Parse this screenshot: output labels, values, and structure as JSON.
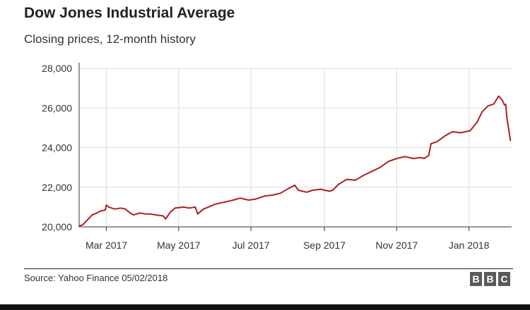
{
  "title": "Dow Jones Industrial Average",
  "subtitle": "Closing prices, 12-month history",
  "source": "Source: Yahoo Finance 05/02/2018",
  "logo": {
    "letters": [
      "B",
      "B",
      "C"
    ]
  },
  "colors": {
    "line": "#b01e1e",
    "grid": "#dddddd",
    "axis": "#333333",
    "text": "#222222"
  },
  "chart_data": {
    "type": "line",
    "title": "Dow Jones Industrial Average",
    "subtitle": "Closing prices, 12-month history",
    "xlabel": "",
    "ylabel": "",
    "ylim": [
      20000,
      28000
    ],
    "xlim": [
      "2017-02-06",
      "2018-02-06"
    ],
    "grid": true,
    "legend": "none",
    "yticks": [
      {
        "value": 20000,
        "label": "20,000"
      },
      {
        "value": 22000,
        "label": "22,000"
      },
      {
        "value": 24000,
        "label": "24,000"
      },
      {
        "value": 26000,
        "label": "26,000"
      },
      {
        "value": 28000,
        "label": "28,000"
      }
    ],
    "xticks": [
      {
        "value": "2017-03-01",
        "label": "Mar 2017"
      },
      {
        "value": "2017-05-01",
        "label": "May 2017"
      },
      {
        "value": "2017-07-01",
        "label": "Jul 2017"
      },
      {
        "value": "2017-09-01",
        "label": "Sep 2017"
      },
      {
        "value": "2017-11-01",
        "label": "Nov 2017"
      },
      {
        "value": "2018-01-01",
        "label": "Jan 2018"
      }
    ],
    "series": [
      {
        "points": [
          [
            "2017-02-06",
            20050
          ],
          [
            "2017-02-09",
            20100
          ],
          [
            "2017-02-13",
            20350
          ],
          [
            "2017-02-17",
            20600
          ],
          [
            "2017-02-21",
            20700
          ],
          [
            "2017-02-24",
            20800
          ],
          [
            "2017-02-28",
            20850
          ],
          [
            "2017-03-01",
            21100
          ],
          [
            "2017-03-03",
            21000
          ],
          [
            "2017-03-08",
            20900
          ],
          [
            "2017-03-13",
            20950
          ],
          [
            "2017-03-17",
            20900
          ],
          [
            "2017-03-21",
            20700
          ],
          [
            "2017-03-24",
            20600
          ],
          [
            "2017-03-29",
            20700
          ],
          [
            "2017-04-03",
            20650
          ],
          [
            "2017-04-07",
            20650
          ],
          [
            "2017-04-12",
            20600
          ],
          [
            "2017-04-18",
            20550
          ],
          [
            "2017-04-20",
            20400
          ],
          [
            "2017-04-24",
            20750
          ],
          [
            "2017-04-28",
            20950
          ],
          [
            "2017-05-05",
            21000
          ],
          [
            "2017-05-10",
            20950
          ],
          [
            "2017-05-15",
            21000
          ],
          [
            "2017-05-17",
            20650
          ],
          [
            "2017-05-22",
            20900
          ],
          [
            "2017-05-26",
            21000
          ],
          [
            "2017-06-01",
            21150
          ],
          [
            "2017-06-09",
            21250
          ],
          [
            "2017-06-16",
            21350
          ],
          [
            "2017-06-22",
            21450
          ],
          [
            "2017-06-29",
            21350
          ],
          [
            "2017-07-05",
            21400
          ],
          [
            "2017-07-12",
            21550
          ],
          [
            "2017-07-19",
            21600
          ],
          [
            "2017-07-26",
            21700
          ],
          [
            "2017-08-02",
            21950
          ],
          [
            "2017-08-07",
            22100
          ],
          [
            "2017-08-10",
            21850
          ],
          [
            "2017-08-17",
            21750
          ],
          [
            "2017-08-22",
            21850
          ],
          [
            "2017-08-29",
            21900
          ],
          [
            "2017-09-05",
            21800
          ],
          [
            "2017-09-08",
            21850
          ],
          [
            "2017-09-13",
            22150
          ],
          [
            "2017-09-20",
            22400
          ],
          [
            "2017-09-27",
            22350
          ],
          [
            "2017-10-04",
            22600
          ],
          [
            "2017-10-11",
            22800
          ],
          [
            "2017-10-18",
            23000
          ],
          [
            "2017-10-25",
            23300
          ],
          [
            "2017-11-01",
            23450
          ],
          [
            "2017-11-08",
            23550
          ],
          [
            "2017-11-15",
            23450
          ],
          [
            "2017-11-21",
            23500
          ],
          [
            "2017-11-24",
            23450
          ],
          [
            "2017-11-28",
            23600
          ],
          [
            "2017-11-30",
            24200
          ],
          [
            "2017-12-05",
            24300
          ],
          [
            "2017-12-12",
            24600
          ],
          [
            "2017-12-18",
            24800
          ],
          [
            "2017-12-25",
            24750
          ],
          [
            "2018-01-02",
            24850
          ],
          [
            "2018-01-08",
            25300
          ],
          [
            "2018-01-12",
            25800
          ],
          [
            "2018-01-17",
            26100
          ],
          [
            "2018-01-22",
            26200
          ],
          [
            "2018-01-26",
            26600
          ],
          [
            "2018-01-29",
            26400
          ],
          [
            "2018-01-31",
            26150
          ],
          [
            "2018-02-01",
            26180
          ],
          [
            "2018-02-02",
            25520
          ],
          [
            "2018-02-05",
            24350
          ]
        ]
      }
    ]
  }
}
